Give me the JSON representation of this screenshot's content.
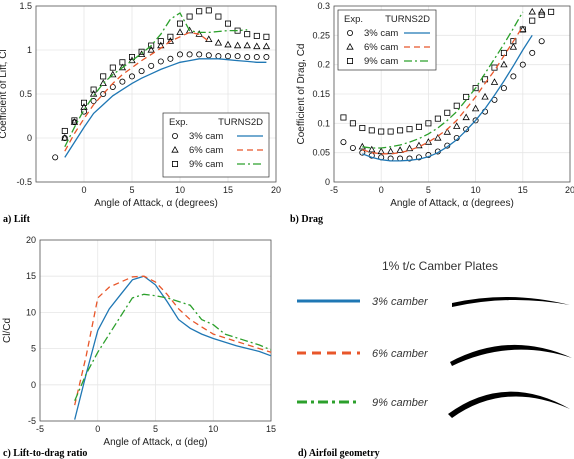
{
  "colors": {
    "blue": "#1f77b4",
    "orange": "#e8562a",
    "green": "#2ca02c",
    "markers": "#000000",
    "grid": "#e6e6e6",
    "frame": "#555555"
  },
  "chart_data": [
    {
      "type": "line",
      "caption": "a) Lift",
      "xlabel": "Angle of Attack, α (degrees)",
      "ylabel": "Coefficient of Lift, Cl",
      "xlim": [
        -5,
        20
      ],
      "ylim": [
        -0.5,
        1.5
      ],
      "xticks": [
        0,
        5,
        10,
        15,
        20
      ],
      "yticks": [
        -0.5,
        0,
        0.5,
        1,
        1.5
      ],
      "grid": true,
      "legend": {
        "placement": "bottom-right",
        "header_exp": "Exp.",
        "header_cfd": "TURNS2D",
        "entries": [
          "3% cam",
          "6% cam",
          "9% cam"
        ]
      },
      "series": [
        {
          "name": "3% cam",
          "kind": "exp",
          "marker": "circle",
          "x": [
            -3,
            -2,
            -1,
            0,
            1,
            2,
            3,
            4,
            5,
            6,
            7,
            8,
            9,
            10,
            11,
            12,
            13,
            14,
            15,
            16,
            17,
            18,
            19
          ],
          "y": [
            -0.22,
            0.0,
            0.18,
            0.3,
            0.42,
            0.5,
            0.58,
            0.64,
            0.7,
            0.76,
            0.82,
            0.87,
            0.9,
            0.95,
            0.95,
            0.95,
            0.94,
            0.93,
            0.93,
            0.93,
            0.92,
            0.92,
            0.92
          ]
        },
        {
          "name": "6% cam",
          "kind": "exp",
          "marker": "triangle",
          "x": [
            -2,
            -1,
            0,
            1,
            2,
            3,
            4,
            5,
            6,
            7,
            8,
            9,
            10,
            11,
            12,
            13,
            14,
            15,
            16,
            17,
            18,
            19
          ],
          "y": [
            0.0,
            0.18,
            0.35,
            0.5,
            0.62,
            0.72,
            0.8,
            0.88,
            0.95,
            1.0,
            1.05,
            1.1,
            1.2,
            1.22,
            1.18,
            1.12,
            1.08,
            1.06,
            1.05,
            1.05,
            1.04,
            1.04
          ]
        },
        {
          "name": "9% cam",
          "kind": "exp",
          "marker": "square",
          "x": [
            -2,
            -1,
            0,
            1,
            2,
            3,
            4,
            5,
            6,
            7,
            8,
            9,
            10,
            11,
            12,
            13,
            14,
            15,
            16,
            17,
            18,
            19
          ],
          "y": [
            0.08,
            0.2,
            0.4,
            0.55,
            0.7,
            0.8,
            0.86,
            0.92,
            0.98,
            1.05,
            1.1,
            1.15,
            1.3,
            1.38,
            1.44,
            1.45,
            1.38,
            1.3,
            1.22,
            1.18,
            1.16,
            1.15
          ]
        },
        {
          "name": "3% cam",
          "kind": "cfd",
          "style": "solid",
          "x": [
            -2,
            -1,
            0,
            1,
            2,
            3,
            4,
            5,
            6,
            7,
            8,
            9,
            10,
            11,
            12,
            13,
            14,
            15,
            16,
            17,
            18,
            19
          ],
          "y": [
            -0.22,
            -0.05,
            0.12,
            0.28,
            0.38,
            0.48,
            0.55,
            0.62,
            0.68,
            0.73,
            0.78,
            0.82,
            0.86,
            0.88,
            0.9,
            0.9,
            0.9,
            0.89,
            0.88,
            0.87,
            0.86,
            0.86
          ]
        },
        {
          "name": "6% cam",
          "kind": "cfd",
          "style": "dashed",
          "x": [
            -2,
            -1,
            0,
            1,
            2,
            3,
            4,
            5,
            6,
            7,
            8,
            9,
            10,
            11,
            12,
            13
          ],
          "y": [
            -0.15,
            0.05,
            0.22,
            0.38,
            0.5,
            0.62,
            0.72,
            0.8,
            0.88,
            0.95,
            1.02,
            1.1,
            1.15,
            1.2,
            1.18,
            1.1
          ]
        },
        {
          "name": "9% cam",
          "kind": "cfd",
          "style": "dashdot",
          "x": [
            -2,
            -1,
            0,
            1,
            2,
            3,
            4,
            5,
            6,
            7,
            8,
            9,
            10,
            11,
            12,
            13,
            14,
            15,
            16,
            17
          ],
          "y": [
            -0.1,
            0.12,
            0.32,
            0.48,
            0.62,
            0.72,
            0.8,
            0.88,
            0.96,
            1.05,
            1.18,
            1.35,
            1.42,
            1.22,
            1.2,
            1.2,
            1.21,
            1.22,
            1.22,
            1.23
          ]
        }
      ]
    },
    {
      "type": "line",
      "caption": "b) Drag",
      "xlabel": "Angle of Attack, α (degrees)",
      "ylabel": "Coefficient of Drag, Cd",
      "xlim": [
        -5,
        20
      ],
      "ylim": [
        0,
        0.3
      ],
      "xticks": [
        -5,
        0,
        5,
        10,
        15,
        20
      ],
      "yticks": [
        0,
        0.05,
        0.1,
        0.15,
        0.2,
        0.25,
        0.3
      ],
      "grid": true,
      "legend": {
        "placement": "top-left",
        "header_exp": "Exp.",
        "header_cfd": "TURNS2D",
        "entries": [
          "3% cam",
          "6% cam",
          "9% cam"
        ]
      },
      "series": [
        {
          "name": "3% cam",
          "kind": "exp",
          "marker": "circle",
          "x": [
            -4,
            -3,
            -2,
            -1,
            0,
            1,
            2,
            3,
            4,
            5,
            6,
            7,
            8,
            9,
            10,
            11,
            12,
            13,
            14,
            15,
            16,
            17
          ],
          "y": [
            0.068,
            0.058,
            0.05,
            0.045,
            0.042,
            0.04,
            0.04,
            0.04,
            0.042,
            0.046,
            0.052,
            0.062,
            0.075,
            0.09,
            0.105,
            0.12,
            0.14,
            0.16,
            0.18,
            0.2,
            0.22,
            0.24
          ]
        },
        {
          "name": "6% cam",
          "kind": "exp",
          "marker": "triangle",
          "x": [
            -2,
            -1,
            0,
            1,
            2,
            3,
            4,
            5,
            6,
            7,
            8,
            9,
            10,
            11,
            12,
            13,
            14,
            15,
            16,
            17
          ],
          "y": [
            0.06,
            0.055,
            0.052,
            0.052,
            0.054,
            0.057,
            0.062,
            0.068,
            0.075,
            0.085,
            0.095,
            0.11,
            0.125,
            0.145,
            0.17,
            0.2,
            0.23,
            0.26,
            0.29,
            0.29
          ]
        },
        {
          "name": "9% cam",
          "kind": "exp",
          "marker": "square",
          "x": [
            -4,
            -3,
            -2,
            -1,
            0,
            1,
            2,
            3,
            4,
            5,
            6,
            7,
            8,
            9,
            10,
            11,
            12,
            13,
            14,
            15,
            16,
            17,
            18
          ],
          "y": [
            0.11,
            0.1,
            0.092,
            0.088,
            0.086,
            0.086,
            0.088,
            0.09,
            0.094,
            0.1,
            0.108,
            0.118,
            0.13,
            0.145,
            0.16,
            0.175,
            0.195,
            0.22,
            0.24,
            0.26,
            0.275,
            0.285,
            0.29
          ]
        },
        {
          "name": "3% cam",
          "kind": "cfd",
          "style": "solid",
          "x": [
            -2,
            -1,
            0,
            1,
            2,
            3,
            4,
            5,
            6,
            7,
            8,
            9,
            10,
            11,
            12,
            13,
            14,
            15,
            16
          ],
          "y": [
            0.048,
            0.042,
            0.038,
            0.036,
            0.036,
            0.037,
            0.039,
            0.043,
            0.05,
            0.06,
            0.072,
            0.088,
            0.105,
            0.125,
            0.148,
            0.172,
            0.198,
            0.225,
            0.25
          ]
        },
        {
          "name": "6% cam",
          "kind": "cfd",
          "style": "dashed",
          "x": [
            -2,
            -1,
            0,
            1,
            2,
            3,
            4,
            5,
            6,
            7,
            8,
            9,
            10,
            11,
            12,
            13,
            14,
            15
          ],
          "y": [
            0.055,
            0.05,
            0.048,
            0.048,
            0.05,
            0.054,
            0.06,
            0.068,
            0.078,
            0.09,
            0.105,
            0.125,
            0.145,
            0.168,
            0.19,
            0.215,
            0.24,
            0.265
          ]
        },
        {
          "name": "9% cam",
          "kind": "cfd",
          "style": "dashdot",
          "x": [
            -2,
            -1,
            0,
            1,
            2,
            3,
            4,
            5,
            6,
            7,
            8,
            9,
            10,
            11,
            12,
            13,
            14,
            15
          ],
          "y": [
            0.06,
            0.058,
            0.058,
            0.06,
            0.063,
            0.068,
            0.074,
            0.082,
            0.092,
            0.105,
            0.12,
            0.14,
            0.16,
            0.185,
            0.21,
            0.235,
            0.262,
            0.29
          ]
        }
      ]
    },
    {
      "type": "line",
      "caption": "c) Lift-to-drag ratio",
      "xlabel": "Angle of Attack, α (deg)",
      "ylabel": "Cl/Cd",
      "xlim": [
        -5,
        15
      ],
      "ylim": [
        -5,
        20
      ],
      "xticks": [
        -5,
        0,
        5,
        10,
        15
      ],
      "yticks": [
        -5,
        0,
        5,
        10,
        15,
        20
      ],
      "grid": true,
      "series": [
        {
          "name": "3% camber",
          "style": "solid",
          "x": [
            -2,
            -1,
            0,
            1,
            2,
            3,
            4,
            5,
            6,
            7,
            8,
            9,
            10,
            11,
            12,
            13,
            14,
            15
          ],
          "y": [
            -4.8,
            1.5,
            7.5,
            10.5,
            12.5,
            14.5,
            15.0,
            13.8,
            11.5,
            9.0,
            7.8,
            7.0,
            6.4,
            5.9,
            5.4,
            5.0,
            4.6,
            4.0
          ]
        },
        {
          "name": "6% camber",
          "style": "dashed",
          "x": [
            -2,
            -1,
            0,
            1,
            2,
            3,
            4,
            5,
            6,
            7,
            8,
            9,
            10,
            11,
            12,
            13,
            14,
            15
          ],
          "y": [
            -2.8,
            4.0,
            12.0,
            13.5,
            14.2,
            14.9,
            15.0,
            14.2,
            12.5,
            10.5,
            9.0,
            8.0,
            7.0,
            6.5,
            6.0,
            5.5,
            5.0,
            4.5
          ]
        },
        {
          "name": "9% camber",
          "style": "dashdot",
          "x": [
            -2,
            -1,
            0,
            1,
            2,
            3,
            4,
            5,
            6,
            7,
            8,
            9,
            10,
            11,
            12,
            13,
            14,
            15
          ],
          "y": [
            -2.2,
            1.5,
            4.5,
            7.0,
            9.5,
            12.0,
            12.5,
            12.3,
            12.0,
            11.5,
            11.0,
            9.0,
            8.3,
            7.0,
            6.5,
            6.0,
            5.5,
            4.8
          ]
        }
      ]
    }
  ],
  "panel_d": {
    "caption": "d) Airfoil geometry",
    "title": "1% t/c Camber Plates",
    "legend": [
      {
        "label": "3% camber",
        "style": "solid"
      },
      {
        "label": "6% camber",
        "style": "dashed"
      },
      {
        "label": "9% camber",
        "style": "dashdot"
      }
    ]
  }
}
